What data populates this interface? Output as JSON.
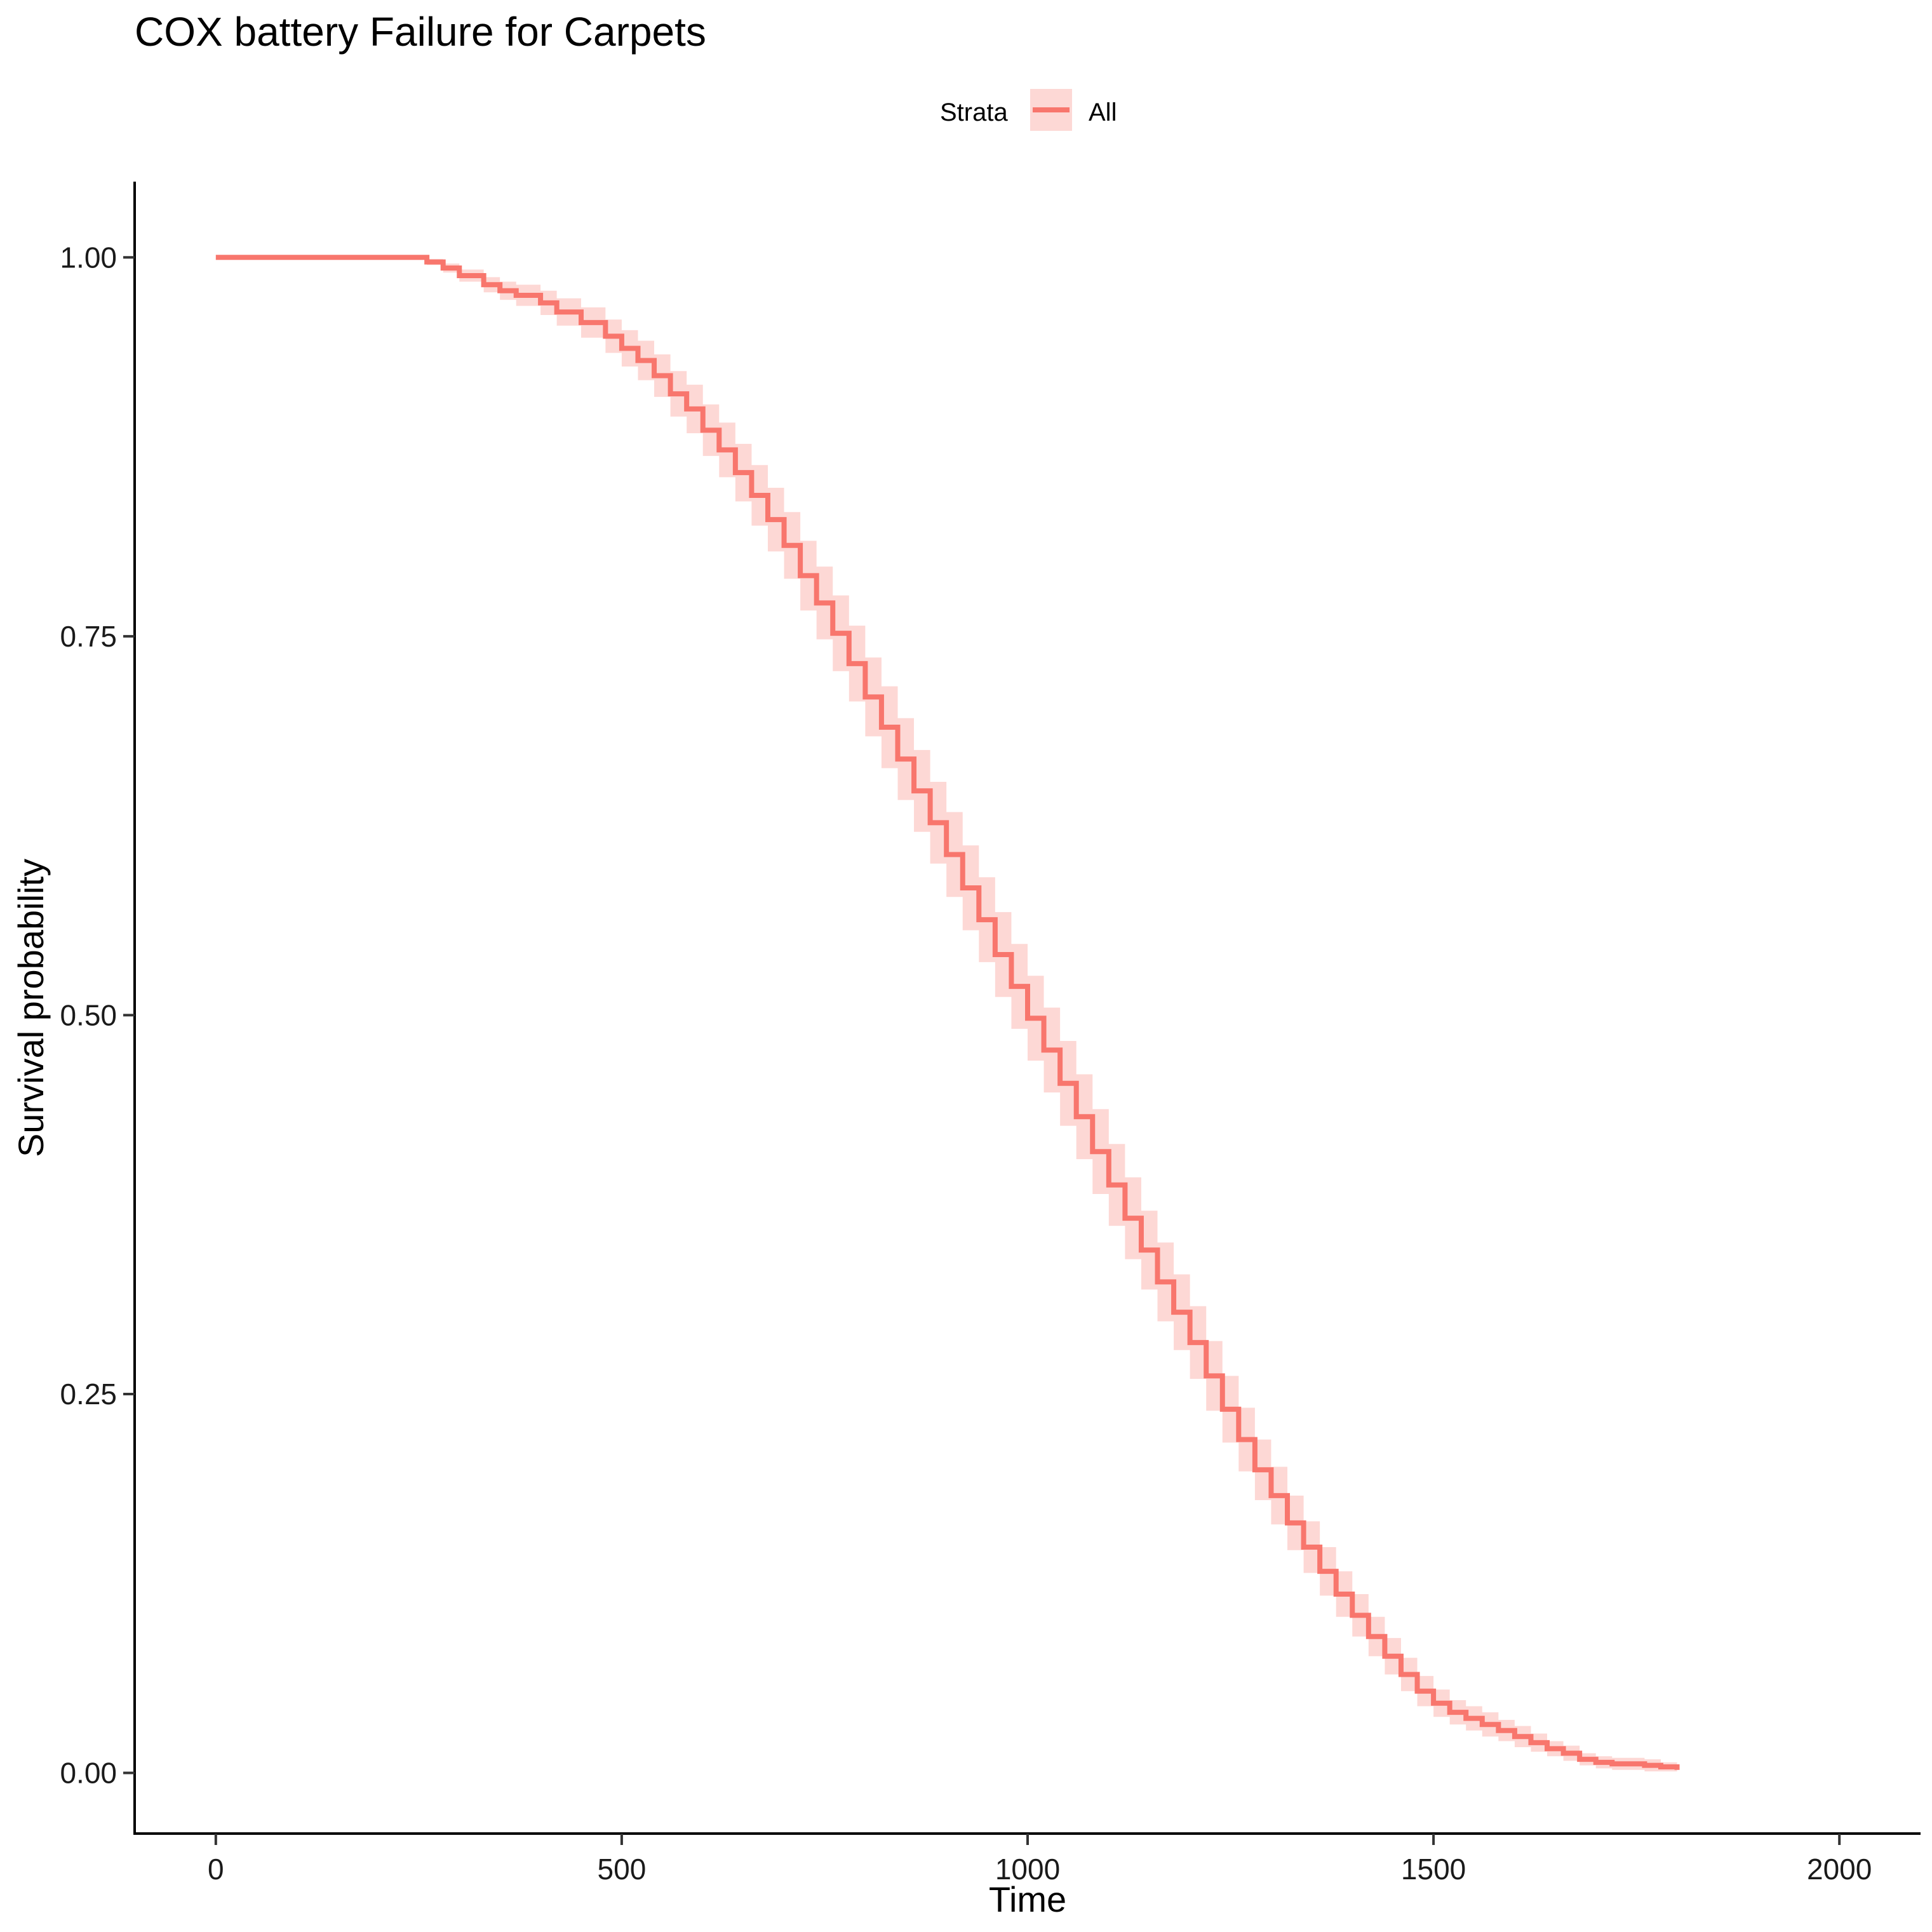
{
  "chart_data": {
    "type": "line",
    "subtype": "kaplan-meier survival curve with confidence band",
    "title": "COX battery Failure for Carpets",
    "xlabel": "Time",
    "ylabel": "Survival probability",
    "xlim": [
      -100,
      2100
    ],
    "ylim": [
      -0.04,
      1.05
    ],
    "x_ticks": [
      0,
      500,
      1000,
      1500,
      2000
    ],
    "x_tick_labels": [
      "0",
      "500",
      "1000",
      "1500",
      "2000"
    ],
    "y_ticks": [
      0,
      0.25,
      0.5,
      0.75,
      1.0
    ],
    "y_tick_labels": [
      "0.00",
      "0.25",
      "0.50",
      "0.75",
      "1.00"
    ],
    "grid": false,
    "legend": {
      "position": "top",
      "title": "Strata",
      "entries": [
        "All"
      ]
    },
    "colors": {
      "line": "#f8766d",
      "band": "#fdd8d5"
    },
    "series": [
      {
        "name": "All",
        "x": [
          0,
          240,
          260,
          280,
          300,
          330,
          350,
          370,
          400,
          420,
          450,
          480,
          500,
          520,
          540,
          560,
          580,
          600,
          620,
          640,
          660,
          680,
          700,
          720,
          740,
          760,
          780,
          800,
          820,
          840,
          860,
          880,
          900,
          920,
          940,
          960,
          980,
          1000,
          1020,
          1040,
          1060,
          1080,
          1100,
          1120,
          1140,
          1160,
          1180,
          1200,
          1220,
          1240,
          1260,
          1280,
          1300,
          1320,
          1340,
          1360,
          1380,
          1400,
          1420,
          1440,
          1460,
          1480,
          1500,
          1520,
          1540,
          1560,
          1580,
          1600,
          1620,
          1640,
          1660,
          1680,
          1700,
          1720,
          1740,
          1760,
          1780,
          1800
        ],
        "y": [
          1.0,
          1.0,
          0.997,
          0.993,
          0.988,
          0.982,
          0.978,
          0.975,
          0.97,
          0.964,
          0.957,
          0.948,
          0.94,
          0.932,
          0.922,
          0.91,
          0.9,
          0.886,
          0.873,
          0.858,
          0.843,
          0.827,
          0.81,
          0.79,
          0.772,
          0.752,
          0.732,
          0.71,
          0.69,
          0.669,
          0.648,
          0.627,
          0.606,
          0.584,
          0.563,
          0.54,
          0.519,
          0.498,
          0.477,
          0.455,
          0.433,
          0.41,
          0.388,
          0.366,
          0.345,
          0.324,
          0.304,
          0.284,
          0.262,
          0.24,
          0.22,
          0.2,
          0.183,
          0.165,
          0.149,
          0.133,
          0.118,
          0.104,
          0.09,
          0.077,
          0.065,
          0.054,
          0.046,
          0.04,
          0.036,
          0.032,
          0.028,
          0.024,
          0.02,
          0.016,
          0.013,
          0.009,
          0.007,
          0.006,
          0.006,
          0.005,
          0.004,
          0.002
        ],
        "ci_lower": [
          1.0,
          1.0,
          0.995,
          0.99,
          0.984,
          0.977,
          0.972,
          0.968,
          0.962,
          0.955,
          0.947,
          0.937,
          0.928,
          0.919,
          0.908,
          0.895,
          0.884,
          0.869,
          0.855,
          0.839,
          0.823,
          0.806,
          0.788,
          0.767,
          0.748,
          0.727,
          0.707,
          0.684,
          0.663,
          0.642,
          0.621,
          0.6,
          0.578,
          0.556,
          0.535,
          0.512,
          0.491,
          0.47,
          0.449,
          0.427,
          0.405,
          0.382,
          0.361,
          0.339,
          0.319,
          0.298,
          0.279,
          0.26,
          0.239,
          0.218,
          0.199,
          0.18,
          0.164,
          0.147,
          0.132,
          0.117,
          0.103,
          0.09,
          0.077,
          0.065,
          0.054,
          0.044,
          0.037,
          0.032,
          0.028,
          0.024,
          0.021,
          0.017,
          0.014,
          0.011,
          0.008,
          0.005,
          0.003,
          0.002,
          0.002,
          0.001,
          0.001,
          0.0
        ],
        "ci_upper": [
          1.0,
          1.0,
          0.999,
          0.996,
          0.992,
          0.987,
          0.984,
          0.982,
          0.978,
          0.973,
          0.967,
          0.959,
          0.952,
          0.945,
          0.936,
          0.925,
          0.916,
          0.903,
          0.891,
          0.877,
          0.863,
          0.848,
          0.832,
          0.813,
          0.796,
          0.777,
          0.757,
          0.736,
          0.717,
          0.696,
          0.675,
          0.654,
          0.634,
          0.612,
          0.591,
          0.568,
          0.547,
          0.526,
          0.505,
          0.483,
          0.461,
          0.438,
          0.415,
          0.393,
          0.371,
          0.35,
          0.329,
          0.308,
          0.285,
          0.262,
          0.241,
          0.22,
          0.202,
          0.183,
          0.166,
          0.149,
          0.133,
          0.118,
          0.103,
          0.089,
          0.076,
          0.064,
          0.055,
          0.048,
          0.044,
          0.04,
          0.035,
          0.031,
          0.026,
          0.021,
          0.018,
          0.013,
          0.011,
          0.01,
          0.01,
          0.009,
          0.007,
          0.004
        ]
      }
    ]
  }
}
